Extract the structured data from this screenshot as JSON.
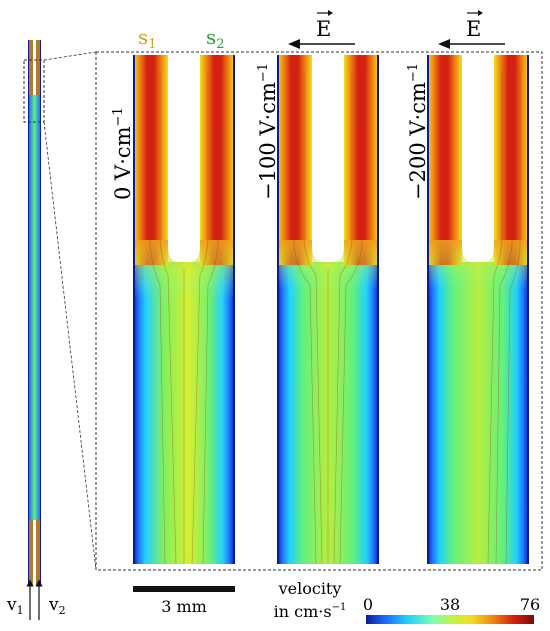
{
  "labels": {
    "stream1": "s",
    "stream1_sub": "1",
    "stream2": "s",
    "stream2_sub": "2",
    "field_symbol": "E",
    "inlet1": "v",
    "inlet1_sub": "1",
    "inlet2": "v",
    "inlet2_sub": "2"
  },
  "panels": [
    {
      "field_label": "0 V·cm",
      "field_exp": "−1",
      "show_field_arrow": false
    },
    {
      "field_label": "−100 V·cm",
      "field_exp": "−1",
      "show_field_arrow": true
    },
    {
      "field_label": "−200 V·cm",
      "field_exp": "−1",
      "show_field_arrow": true
    }
  ],
  "scale_bar": {
    "label": "3 mm"
  },
  "colorbar": {
    "title_line1": "velocity",
    "title_line2": "in cm·s",
    "title_exp": "−1",
    "ticks": [
      "0",
      "38",
      "76"
    ],
    "colors": [
      "#0a1a9a",
      "#1e6fff",
      "#20d0ff",
      "#7fffb0",
      "#c8f03c",
      "#f0e020",
      "#f08a10",
      "#d42010",
      "#7a0a05"
    ]
  }
}
